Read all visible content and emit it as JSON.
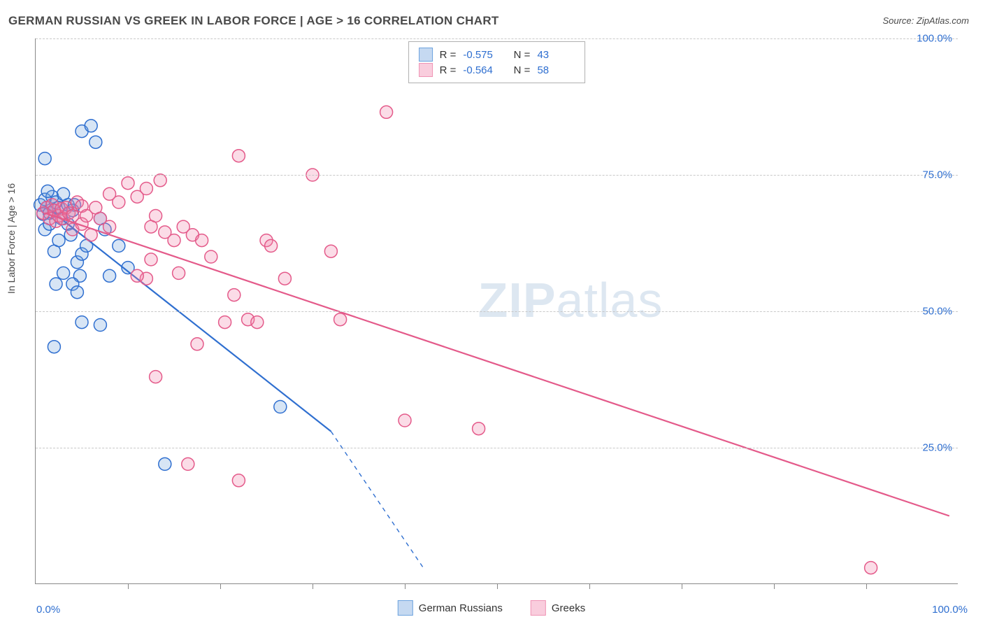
{
  "title": "GERMAN RUSSIAN VS GREEK IN LABOR FORCE | AGE > 16 CORRELATION CHART",
  "source_label": "Source: ",
  "source_name": "ZipAtlas.com",
  "y_axis_label": "In Labor Force | Age > 16",
  "watermark_a": "ZIP",
  "watermark_b": "atlas",
  "chart": {
    "type": "scatter-with-regression",
    "xlim": [
      0,
      100
    ],
    "ylim": [
      0,
      100
    ],
    "x_tick_labels": {
      "left": "0.0%",
      "right": "100.0%"
    },
    "y_ticks": [
      {
        "v": 25,
        "label": "25.0%"
      },
      {
        "v": 50,
        "label": "50.0%"
      },
      {
        "v": 75,
        "label": "75.0%"
      },
      {
        "v": 100,
        "label": "100.0%"
      }
    ],
    "x_tick_marks": [
      10,
      20,
      30,
      40,
      50,
      60,
      70,
      80,
      90
    ],
    "background_color": "#ffffff",
    "grid_color": "#c8c8c8",
    "axis_color": "#888888",
    "tick_label_color": "#2f6fd0",
    "marker_radius": 9,
    "marker_stroke_width": 1.5,
    "marker_fill_opacity": 0.25,
    "line_width": 2.2,
    "series": [
      {
        "name": "German Russians",
        "stroke": "#2f6fd0",
        "fill": "rgba(110,160,220,0.28)",
        "swatch_border": "#6da3de",
        "swatch_fill": "rgba(110,160,220,0.4)",
        "R": "-0.575",
        "N": "43",
        "reg_line": {
          "x1": 1,
          "y1": 69.3,
          "x2": 32,
          "y2": 28
        },
        "reg_dash": {
          "x1": 32,
          "y1": 28,
          "x2": 42,
          "y2": 3
        },
        "points": [
          [
            0.5,
            69.5
          ],
          [
            0.8,
            67.8
          ],
          [
            1.0,
            70.5
          ],
          [
            1.2,
            69.0
          ],
          [
            1.5,
            68.0
          ],
          [
            1.8,
            71.0
          ],
          [
            1.0,
            65.0
          ],
          [
            1.5,
            66.0
          ],
          [
            2.0,
            68.5
          ],
          [
            2.2,
            70.0
          ],
          [
            2.5,
            69.0
          ],
          [
            2.8,
            67.0
          ],
          [
            3.0,
            71.5
          ],
          [
            3.5,
            69.5
          ],
          [
            1.0,
            78.0
          ],
          [
            1.3,
            72.0
          ],
          [
            2.0,
            61.0
          ],
          [
            2.5,
            63.0
          ],
          [
            3.5,
            66.0
          ],
          [
            3.8,
            64.0
          ],
          [
            4.0,
            68.5
          ],
          [
            4.2,
            69.5
          ],
          [
            4.5,
            59.0
          ],
          [
            4.8,
            56.5
          ],
          [
            5.0,
            60.5
          ],
          [
            5.5,
            62.0
          ],
          [
            5.0,
            83.0
          ],
          [
            6.0,
            84.0
          ],
          [
            2.2,
            55.0
          ],
          [
            3.0,
            57.0
          ],
          [
            4.0,
            55.0
          ],
          [
            4.5,
            53.5
          ],
          [
            2.0,
            43.5
          ],
          [
            5.0,
            48.0
          ],
          [
            7.0,
            47.5
          ],
          [
            7.0,
            67.0
          ],
          [
            7.5,
            65.0
          ],
          [
            8.0,
            56.5
          ],
          [
            26.5,
            32.5
          ],
          [
            14.0,
            22.0
          ],
          [
            9.0,
            62.0
          ],
          [
            10.0,
            58.0
          ],
          [
            6.5,
            81.0
          ]
        ]
      },
      {
        "name": "Greeks",
        "stroke": "#e45a8a",
        "fill": "rgba(240,130,170,0.28)",
        "swatch_border": "#ef94b5",
        "swatch_fill": "rgba(240,130,170,0.4)",
        "R": "-0.564",
        "N": "58",
        "reg_line": {
          "x1": 1,
          "y1": 68.0,
          "x2": 99,
          "y2": 12.5
        },
        "points": [
          [
            0.8,
            68.0
          ],
          [
            1.2,
            69.0
          ],
          [
            1.5,
            67.0
          ],
          [
            1.8,
            69.5
          ],
          [
            2.0,
            68.5
          ],
          [
            2.2,
            66.5
          ],
          [
            2.5,
            67.5
          ],
          [
            2.8,
            68.8
          ],
          [
            3.0,
            67.0
          ],
          [
            3.3,
            69.0
          ],
          [
            3.6,
            68.0
          ],
          [
            4.0,
            67.5
          ],
          [
            4.0,
            65.0
          ],
          [
            4.5,
            70.0
          ],
          [
            5.0,
            69.3
          ],
          [
            5.0,
            66.0
          ],
          [
            5.5,
            67.5
          ],
          [
            6.0,
            64.0
          ],
          [
            6.5,
            69.0
          ],
          [
            7.0,
            67.0
          ],
          [
            8.0,
            65.5
          ],
          [
            8.0,
            71.5
          ],
          [
            9.0,
            70.0
          ],
          [
            10.0,
            73.5
          ],
          [
            11.0,
            71.0
          ],
          [
            12.0,
            72.5
          ],
          [
            12.5,
            65.5
          ],
          [
            13.0,
            67.5
          ],
          [
            14.0,
            64.5
          ],
          [
            13.5,
            74.0
          ],
          [
            15.0,
            63.0
          ],
          [
            16.0,
            65.5
          ],
          [
            17.0,
            64.0
          ],
          [
            18.0,
            63.0
          ],
          [
            19.0,
            60.0
          ],
          [
            12.0,
            56.0
          ],
          [
            11.0,
            56.5
          ],
          [
            12.5,
            59.5
          ],
          [
            15.5,
            57.0
          ],
          [
            17.5,
            44.0
          ],
          [
            13.0,
            38.0
          ],
          [
            20.5,
            48.0
          ],
          [
            21.5,
            53.0
          ],
          [
            23.0,
            48.5
          ],
          [
            24.0,
            48.0
          ],
          [
            25.0,
            63.0
          ],
          [
            27.0,
            56.0
          ],
          [
            22.0,
            78.5
          ],
          [
            25.5,
            62.0
          ],
          [
            30.0,
            75.0
          ],
          [
            32.0,
            61.0
          ],
          [
            33.0,
            48.5
          ],
          [
            38.0,
            86.5
          ],
          [
            40.0,
            30.0
          ],
          [
            48.0,
            28.5
          ],
          [
            16.5,
            22.0
          ],
          [
            22.0,
            19.0
          ],
          [
            90.5,
            3.0
          ]
        ]
      }
    ],
    "bottom_legend": [
      {
        "label": "German Russians",
        "border": "#6da3de",
        "fill": "rgba(110,160,220,0.4)"
      },
      {
        "label": "Greeks",
        "border": "#ef94b5",
        "fill": "rgba(240,130,170,0.4)"
      }
    ]
  }
}
